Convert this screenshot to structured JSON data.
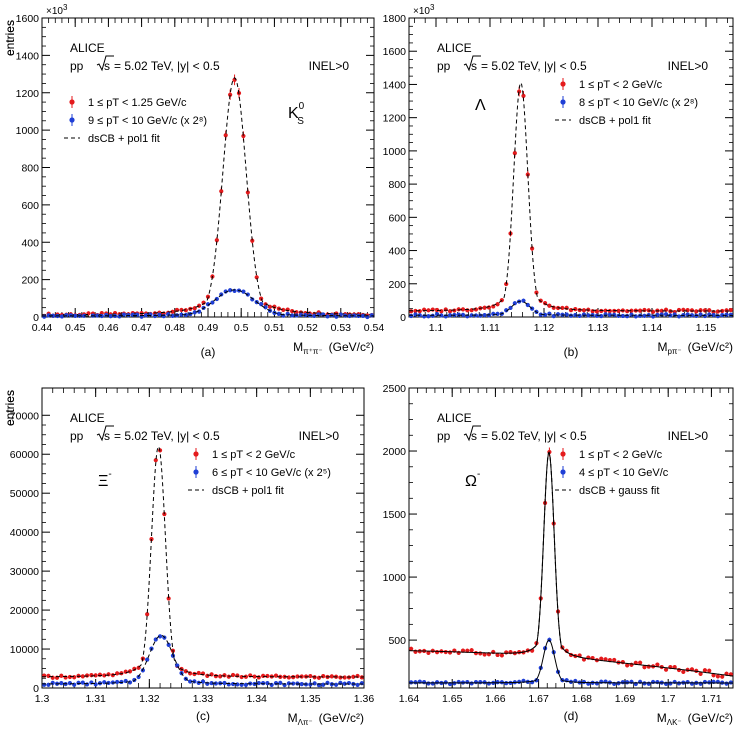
{
  "chart_data": [
    {
      "type": "scatter",
      "panel_label": "(a)",
      "experiment": "ALICE",
      "system_prefix": "pp",
      "system_energy": "= 5.02 TeV, |y| < 0.5",
      "event_class": "INEL>0",
      "particle": "K",
      "particle_sub": "S",
      "particle_sup": "0",
      "ylabel": "entries",
      "y_multiplier": "×10",
      "y_multiplier_exp": "3",
      "xlabel_main": "M",
      "xlabel_sub": "π⁺π⁻",
      "xlabel_unit": "(GeV/c²)",
      "xlim": [
        0.44,
        0.54
      ],
      "ylim": [
        0,
        1600
      ],
      "xticks": [
        0.44,
        0.45,
        0.46,
        0.47,
        0.48,
        0.49,
        0.5,
        0.51,
        0.52,
        0.53,
        0.54
      ],
      "xtick_labels": [
        "0.44",
        "0.45",
        "0.46",
        "0.47",
        "0.48",
        "0.49",
        "0.5",
        "0.51",
        "0.52",
        "0.53",
        "0.54"
      ],
      "yticks": [
        0,
        200,
        400,
        600,
        800,
        1000,
        1200,
        1400,
        1600
      ],
      "ytick_labels": [
        "0",
        "200",
        "400",
        "600",
        "800",
        "1000",
        "1200",
        "1400",
        "1600"
      ],
      "legend": [
        {
          "marker": "red",
          "text": "1  ≤  pT < 1.25 GeV/c"
        },
        {
          "marker": "blue",
          "text": "9  ≤  pT < 10 GeV/c (x 2⁸)"
        },
        {
          "marker": "dash",
          "text": "dsCB + pol1 fit"
        }
      ],
      "fit_style": "dashed",
      "series": [
        {
          "color": "#e41a1c",
          "peak": 1280,
          "mu": 0.498,
          "sigma": 0.0035,
          "bg0": 10,
          "bg1": 0
        },
        {
          "color": "#1f3fd6",
          "peak": 145,
          "mu": 0.498,
          "sigma": 0.006,
          "bg0": 5,
          "bg1": 0
        }
      ]
    },
    {
      "type": "scatter",
      "panel_label": "(b)",
      "experiment": "ALICE",
      "system_prefix": "pp",
      "system_energy": "= 5.02 TeV, |y| < 0.5",
      "event_class": "INEL>0",
      "particle": "Λ",
      "particle_sub": "",
      "particle_sup": "",
      "ylabel": "entries",
      "y_multiplier": "×10",
      "y_multiplier_exp": "3",
      "xlabel_main": "M",
      "xlabel_sub": "pπ⁻",
      "xlabel_unit": "(GeV/c²)",
      "xlim": [
        1.095,
        1.155
      ],
      "ylim": [
        0,
        1800
      ],
      "xticks": [
        1.1,
        1.11,
        1.12,
        1.13,
        1.14,
        1.15
      ],
      "xtick_labels": [
        "1.1",
        "1.11",
        "1.12",
        "1.13",
        "1.14",
        "1.15"
      ],
      "yticks": [
        0,
        200,
        400,
        600,
        800,
        1000,
        1200,
        1400,
        1600,
        1800
      ],
      "ytick_labels": [
        "0",
        "200",
        "400",
        "600",
        "800",
        "1000",
        "1200",
        "1400",
        "1600",
        "1800"
      ],
      "legend": [
        {
          "marker": "red",
          "text": "1  ≤  pT < 2 GeV/c"
        },
        {
          "marker": "blue",
          "text": "8  ≤  pT < 10 GeV/c (x 2⁸)"
        },
        {
          "marker": "dash",
          "text": "dsCB + pol1 fit"
        }
      ],
      "fit_style": "dashed",
      "series": [
        {
          "color": "#e41a1c",
          "peak": 1410,
          "mu": 1.1157,
          "sigma": 0.0013,
          "bg0": 35,
          "bg1": 0
        },
        {
          "color": "#1f3fd6",
          "peak": 95,
          "mu": 1.1157,
          "sigma": 0.0017,
          "bg0": 10,
          "bg1": 0
        }
      ]
    },
    {
      "type": "scatter",
      "panel_label": "(c)",
      "experiment": "ALICE",
      "system_prefix": "pp",
      "system_energy": "= 5.02 TeV, |y| < 0.5",
      "event_class": "INEL>0",
      "particle": "Ξ",
      "particle_sub": "",
      "particle_sup": "-",
      "ylabel": "entries",
      "y_multiplier": "",
      "y_multiplier_exp": "",
      "xlabel_main": "M",
      "xlabel_sub": "Λπ⁻",
      "xlabel_unit": "(GeV/c²)",
      "xlim": [
        1.3,
        1.36
      ],
      "ylim": [
        0,
        77000
      ],
      "xticks": [
        1.3,
        1.31,
        1.32,
        1.33,
        1.34,
        1.35,
        1.36
      ],
      "xtick_labels": [
        "1.3",
        "1.31",
        "1.32",
        "1.33",
        "1.34",
        "1.35",
        "1.36"
      ],
      "yticks": [
        0,
        10000,
        20000,
        30000,
        40000,
        50000,
        60000,
        70000
      ],
      "ytick_labels": [
        "0",
        "10000",
        "20000",
        "30000",
        "40000",
        "50000",
        "60000",
        "70000"
      ],
      "legend": [
        {
          "marker": "red",
          "text": "1  ≤  pT < 2 GeV/c"
        },
        {
          "marker": "blue",
          "text": "6  ≤  pT < 10 GeV/c (x 2⁵)"
        },
        {
          "marker": "dash",
          "text": "dsCB + pol1 fit"
        }
      ],
      "fit_style": "dashed",
      "series": [
        {
          "color": "#e41a1c",
          "peak": 62000,
          "mu": 1.3217,
          "sigma": 0.0013,
          "bg0": 2800,
          "bg1": 0
        },
        {
          "color": "#1f3fd6",
          "peak": 13500,
          "mu": 1.3222,
          "sigma": 0.0022,
          "bg0": 1000,
          "bg1": 0
        }
      ]
    },
    {
      "type": "scatter",
      "panel_label": "(d)",
      "experiment": "ALICE",
      "system_prefix": "pp",
      "system_energy": "= 5.02 TeV, |y| < 0.5",
      "event_class": "INEL>0",
      "particle": "Ω",
      "particle_sub": "",
      "particle_sup": "-",
      "ylabel": "entries",
      "y_multiplier": "",
      "y_multiplier_exp": "",
      "xlabel_main": "M",
      "xlabel_sub": "ΛK⁻",
      "xlabel_unit": "(GeV/c²)",
      "xlim": [
        1.64,
        1.715
      ],
      "ylim": [
        120,
        2500
      ],
      "xticks": [
        1.64,
        1.65,
        1.66,
        1.67,
        1.68,
        1.69,
        1.7,
        1.71
      ],
      "xtick_labels": [
        "1.64",
        "1.65",
        "1.66",
        "1.67",
        "1.68",
        "1.69",
        "1.7",
        "1.71"
      ],
      "yticks": [
        500,
        1000,
        1500,
        2000,
        2500
      ],
      "ytick_labels": [
        "500",
        "1000",
        "1500",
        "2000",
        "2500"
      ],
      "legend": [
        {
          "marker": "red",
          "text": "1  ≤  pT < 2 GeV/c"
        },
        {
          "marker": "blue",
          "text": "4  ≤  pT < 10 GeV/c"
        },
        {
          "marker": "dash",
          "text": "dsCB + gauss fit"
        }
      ],
      "fit_style": "solid",
      "series": [
        {
          "color": "#e41a1c",
          "peak": 1990,
          "mu": 1.6724,
          "sigma": 0.0012,
          "bg0": 365,
          "bg1": -2400,
          "bgq": -26000,
          "ref": 1.672
        },
        {
          "color": "#1f3fd6",
          "peak": 500,
          "mu": 1.6724,
          "sigma": 0.0013,
          "bg0": 160,
          "bg1": 0,
          "bgq": 0,
          "ref": 1.672
        }
      ]
    }
  ]
}
